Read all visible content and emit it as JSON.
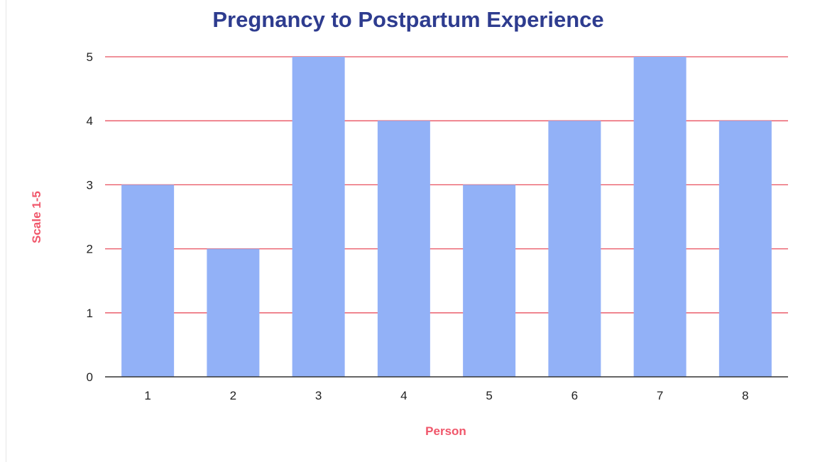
{
  "chart_data": {
    "type": "bar",
    "title": "Pregnancy to Postpartum Experience",
    "xlabel": "Person",
    "ylabel": "Scale 1-5",
    "categories": [
      "1",
      "2",
      "3",
      "4",
      "5",
      "6",
      "7",
      "8"
    ],
    "series": [
      {
        "values": [
          3,
          2,
          5,
          4,
          3,
          4,
          5,
          4
        ],
        "color": "#92B1F7"
      }
    ],
    "ylim": [
      0,
      5
    ],
    "yticks": [
      0,
      1,
      2,
      3,
      4,
      5
    ],
    "grid": true,
    "legend": "none"
  },
  "colors": {
    "title": "#2E3C8F",
    "axis_label": "#F0566A",
    "gridline": "#E8515F",
    "baseline": "#333333",
    "tick_text": "#222222"
  }
}
